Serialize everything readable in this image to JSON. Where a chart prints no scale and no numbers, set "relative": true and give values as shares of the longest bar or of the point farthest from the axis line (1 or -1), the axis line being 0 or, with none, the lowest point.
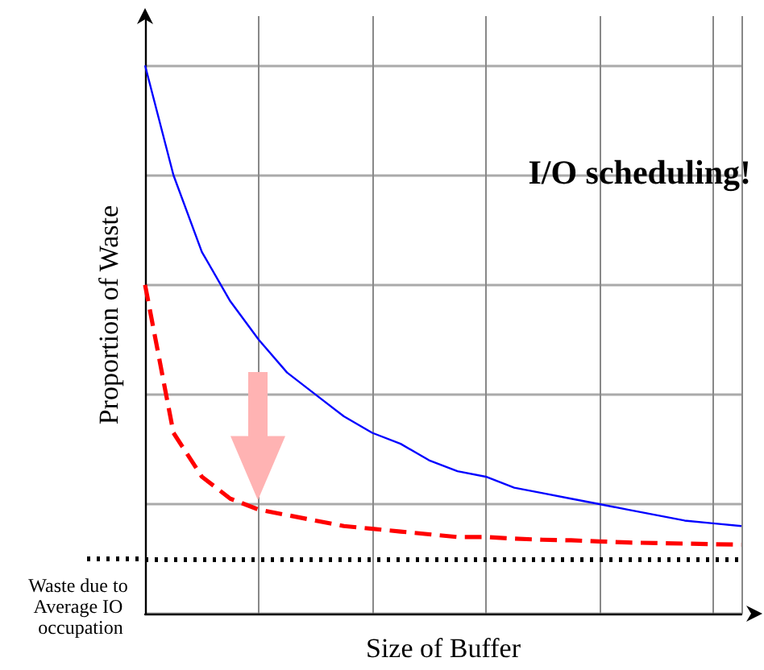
{
  "chart_data": {
    "type": "line",
    "relative": true,
    "xlabel": "Size of Buffer",
    "ylabel": "Proportion of Waste",
    "annotations": [
      "I/O scheduling!"
    ],
    "categories": [
      null,
      null,
      null,
      null,
      null,
      null,
      null,
      null,
      null,
      null,
      null,
      null,
      null,
      null,
      null,
      null,
      null,
      null,
      null,
      null,
      null,
      null
    ],
    "series": [
      {
        "color": "#0000ff",
        "line_style": "solid",
        "values": [
          1.0,
          0.8,
          0.66,
          0.57,
          0.5,
          0.44,
          0.4,
          0.36,
          0.33,
          0.31,
          0.28,
          0.26,
          0.25,
          0.23,
          0.22,
          0.21,
          0.2,
          0.19,
          0.18,
          0.17,
          0.165,
          0.16
        ]
      },
      {
        "color": "#ff0000",
        "line_style": "dashed",
        "values": [
          0.6,
          0.33,
          0.25,
          0.21,
          0.19,
          0.18,
          0.17,
          0.16,
          0.155,
          0.15,
          0.145,
          0.14,
          0.14,
          0.137,
          0.135,
          0.134,
          0.132,
          0.13,
          0.129,
          0.128,
          0.127,
          0.126
        ]
      }
    ],
    "ref_lines": [
      {
        "axis": "y",
        "value": 0.1,
        "label": "Waste due to Average IO occupation",
        "color": "#000000",
        "line_style": "dotted"
      }
    ],
    "grid": true,
    "marker": "none"
  }
}
